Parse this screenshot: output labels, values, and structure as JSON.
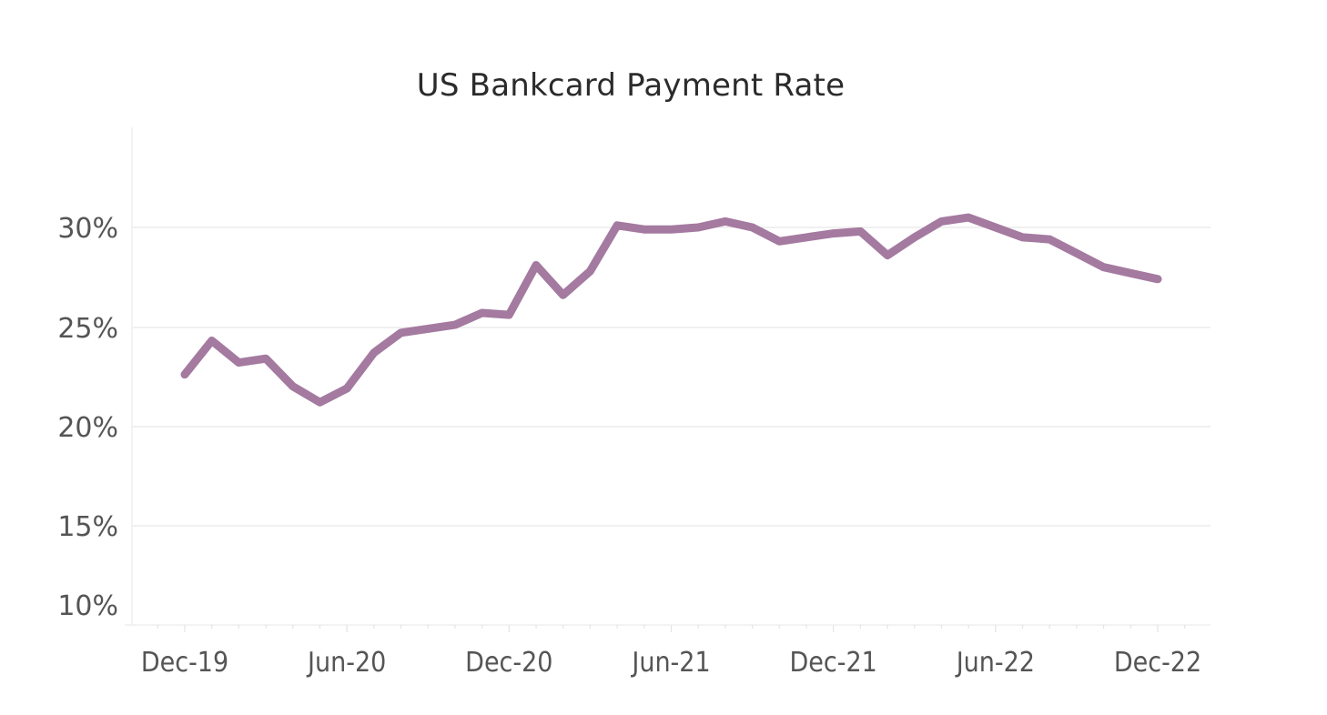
{
  "chart_data": {
    "type": "line",
    "title": "US Bankcard Payment Rate",
    "xlabel": "",
    "ylabel": "",
    "ylim": [
      10,
      33
    ],
    "grid": true,
    "legend": null,
    "y_ticks": [
      "10%",
      "15%",
      "20%",
      "25%",
      "30%"
    ],
    "x_ticks": [
      "Dec-19",
      "Jun-20",
      "Dec-20",
      "Jun-21",
      "Dec-21",
      "Jun-22",
      "Dec-22"
    ],
    "x": [
      "Dec-19",
      "Jan-20",
      "Feb-20",
      "Mar-20",
      "Apr-20",
      "May-20",
      "Jun-20",
      "Jul-20",
      "Aug-20",
      "Sep-20",
      "Oct-20",
      "Nov-20",
      "Dec-20",
      "Jan-21",
      "Feb-21",
      "Mar-21",
      "Apr-21",
      "May-21",
      "Jun-21",
      "Jul-21",
      "Aug-21",
      "Sep-21",
      "Oct-21",
      "Nov-21",
      "Dec-21",
      "Jan-22",
      "Feb-22",
      "Mar-22",
      "Apr-22",
      "May-22",
      "Jun-22",
      "Jul-22",
      "Aug-22",
      "Sep-22",
      "Oct-22",
      "Nov-22",
      "Dec-22"
    ],
    "series": [
      {
        "name": "US Bankcard Payment Rate",
        "color": "#a47aa0",
        "values": [
          22.6,
          24.3,
          23.2,
          23.4,
          22.0,
          21.2,
          21.9,
          23.7,
          24.7,
          24.9,
          25.1,
          25.7,
          25.6,
          28.1,
          26.6,
          27.8,
          30.1,
          29.9,
          29.9,
          30.0,
          30.3,
          30.0,
          29.3,
          29.5,
          29.7,
          29.8,
          28.6,
          29.5,
          30.3,
          30.5,
          30.0,
          29.5,
          29.4,
          28.7,
          28.0,
          27.7,
          27.4
        ]
      }
    ]
  },
  "colors": {
    "line": "#a47aa0",
    "grid": "#ececec",
    "tick_text": "#555555",
    "title_text": "#2b2b2b"
  }
}
